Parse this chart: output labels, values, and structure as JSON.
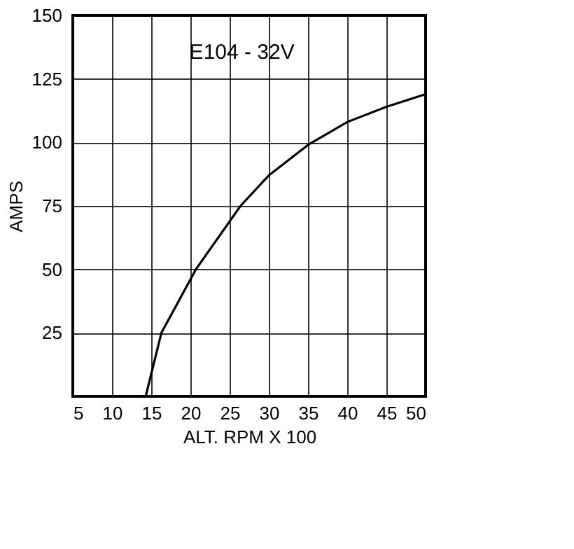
{
  "chart_data": {
    "type": "line",
    "title": "E104 - 32V",
    "xlabel": "ALT. RPM X 100",
    "ylabel": "AMPS",
    "x": [
      14.3,
      16.3,
      20.7,
      26.4,
      30,
      35,
      40,
      45,
      50
    ],
    "series": [
      {
        "color": "#000000",
        "values": [
          0,
          25,
          50,
          75,
          87,
          99,
          108,
          114,
          119
        ]
      }
    ],
    "xlim": [
      5,
      50
    ],
    "xticks": [
      5,
      10,
      15,
      20,
      25,
      30,
      35,
      40,
      45,
      50
    ],
    "ylim": [
      0,
      150
    ],
    "yticks": [
      25,
      50,
      75,
      100,
      125,
      150
    ],
    "grid": true,
    "legend": false,
    "marker": "none",
    "line_style": "solid"
  }
}
